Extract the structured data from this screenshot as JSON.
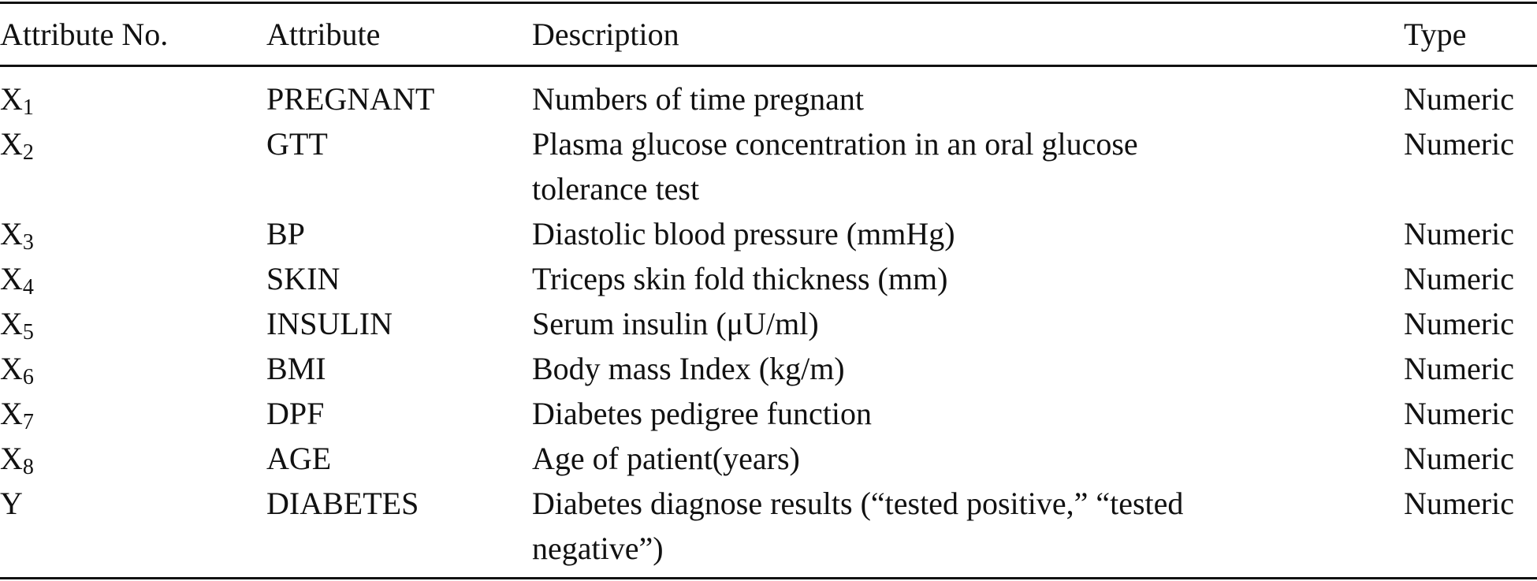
{
  "table": {
    "header": [
      "Attribute No.",
      "Attribute",
      "Description",
      "Type"
    ],
    "rows": [
      [
        {
          "base": "X",
          "sub": "1"
        },
        "PREGNANT",
        "Numbers of time pregnant",
        "Numeric"
      ],
      [
        {
          "base": "X",
          "sub": "2"
        },
        "GTT",
        "Plasma glucose concentration in an oral glucose tolerance test",
        "Numeric"
      ],
      [
        {
          "base": "X",
          "sub": "3"
        },
        "BP",
        "Diastolic blood pressure (mmHg)",
        "Numeric"
      ],
      [
        {
          "base": "X",
          "sub": "4"
        },
        "SKIN",
        "Triceps skin fold thickness (mm)",
        "Numeric"
      ],
      [
        {
          "base": "X",
          "sub": "5"
        },
        "INSULIN",
        "Serum insulin (μU/ml)",
        "Numeric"
      ],
      [
        {
          "base": "X",
          "sub": "6"
        },
        "BMI",
        "Body mass Index (kg/m)",
        "Numeric"
      ],
      [
        {
          "base": "X",
          "sub": "7"
        },
        "DPF",
        "Diabetes pedigree function",
        "Numeric"
      ],
      [
        {
          "base": "X",
          "sub": "8"
        },
        "AGE",
        "Age of patient(years)",
        "Numeric"
      ],
      [
        {
          "base": "Y"
        },
        "DIABETES",
        "Diabetes diagnose results (“tested positive,” “tested negative”)",
        "Numeric"
      ]
    ]
  }
}
